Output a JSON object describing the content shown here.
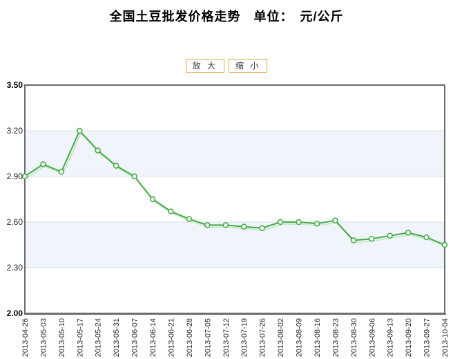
{
  "page": {
    "title": "全国土豆批发价格走势　单位：　元/公斤"
  },
  "toolbar": {
    "zoom_in_label": "放 大",
    "zoom_out_label": "缩 小"
  },
  "chart_data": {
    "type": "line",
    "title": "全国土豆批发价格走势",
    "unit": "元/公斤",
    "categories": [
      "2013-04-26",
      "2013-05-03",
      "2013-05-10",
      "2013-05-17",
      "2013-05-24",
      "2013-05-31",
      "2013-06-07",
      "2013-06-14",
      "2013-06-21",
      "2013-06-28",
      "2013-07-05",
      "2013-07-12",
      "2013-07-19",
      "2013-07-26",
      "2013-08-02",
      "2013-08-09",
      "2013-08-16",
      "2013-08-23",
      "2013-08-30",
      "2013-09-06",
      "2013-09-13",
      "2013-09-20",
      "2013-09-27",
      "2013-10-04"
    ],
    "values": [
      2.9,
      2.98,
      2.93,
      3.2,
      3.07,
      2.97,
      2.9,
      2.75,
      2.67,
      2.62,
      2.58,
      2.58,
      2.57,
      2.56,
      2.6,
      2.6,
      2.59,
      2.61,
      2.48,
      2.49,
      2.51,
      2.53,
      2.5,
      2.45
    ],
    "ylim": [
      2.0,
      3.5
    ],
    "yticks": [
      "2.00",
      "2.30",
      "2.60",
      "2.90",
      "3.20",
      "3.50"
    ],
    "grid": true,
    "legend_position": "none",
    "alternating_bands": true
  },
  "colors": {
    "line": "#45A945",
    "line_shadow": "#C3E5C3",
    "marker_fill": "#F2FBF2",
    "band": "#F0F5FB",
    "gridline": "#DADFE6",
    "axis_border": "#6B6B6B",
    "button_border": "#E9A33C",
    "title_text": "#000000"
  }
}
